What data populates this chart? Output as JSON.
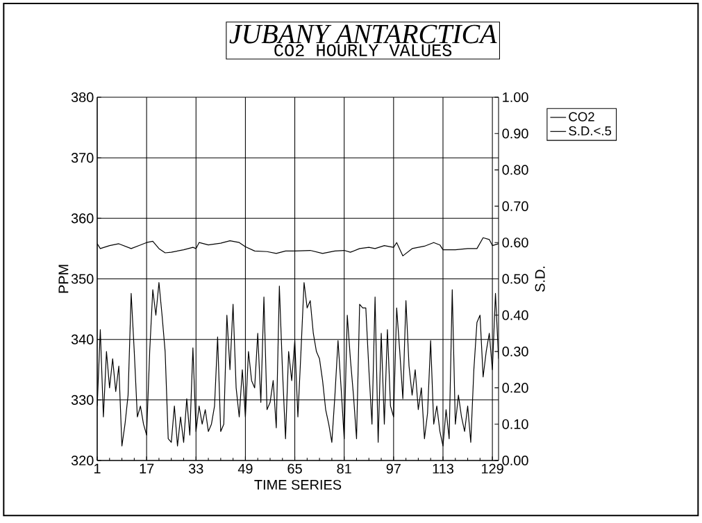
{
  "chart_data": {
    "type": "line",
    "title": "JUBANY ANTARCTICA",
    "subtitle": "CO2 HOURLY VALUES",
    "xlabel": "TIME SERIES",
    "ylabel": "PPM",
    "y2label": "S.D.",
    "xlim": [
      1,
      131
    ],
    "xticks": [
      1,
      17,
      33,
      49,
      65,
      81,
      97,
      113,
      129
    ],
    "ylim": [
      320,
      380
    ],
    "yticks": [
      320,
      330,
      340,
      350,
      360,
      370,
      380
    ],
    "y2lim": [
      0,
      1
    ],
    "y2ticks": [
      {
        "value": 0,
        "label": "0.00"
      },
      {
        "value": 0.1,
        "label": "0.10"
      },
      {
        "value": 0.2,
        "label": "0.20"
      },
      {
        "value": 0.3,
        "label": "0.30"
      },
      {
        "value": 0.4,
        "label": "0.40"
      },
      {
        "value": 0.5,
        "label": "0.50"
      },
      {
        "value": 0.6,
        "label": "0.60"
      },
      {
        "value": 0.7,
        "label": "0.70"
      },
      {
        "value": 0.8,
        "label": "0.80"
      },
      {
        "value": 0.9,
        "label": "0.90"
      },
      {
        "value": 1,
        "label": "1.00"
      }
    ],
    "grid": true,
    "legend": "right",
    "marker": "none",
    "line_style": "solid",
    "series": [
      {
        "name": "CO2",
        "color": "#000000",
        "x": [
          1,
          2,
          5,
          8,
          12,
          15,
          17,
          19,
          21,
          23,
          25,
          29,
          32,
          33,
          34,
          37,
          41,
          44,
          47,
          49,
          52,
          56,
          59,
          62,
          65,
          70,
          74,
          78,
          81,
          83,
          86,
          89,
          91,
          94,
          97,
          98,
          100,
          103,
          107,
          110,
          112,
          113,
          117,
          121,
          124,
          126,
          128,
          129,
          131
        ],
        "values": [
          355.8,
          355,
          355.5,
          355.8,
          355,
          355.6,
          356,
          356.2,
          355,
          354.3,
          354.4,
          354.8,
          355.2,
          355,
          356,
          355.6,
          355.9,
          356.3,
          356,
          355.3,
          354.6,
          354.5,
          354.2,
          354.6,
          354.6,
          354.7,
          354.2,
          354.6,
          354.7,
          354.4,
          355,
          355.2,
          355,
          355.5,
          355.2,
          356,
          353.8,
          355,
          355.4,
          356,
          355.6,
          354.8,
          354.8,
          355,
          355,
          356.8,
          356.5,
          355.5,
          355.8
        ]
      },
      {
        "name": "S.D.<.5",
        "color": "#000000",
        "axis": "y2",
        "x": [
          1,
          2,
          3,
          4,
          5,
          6,
          7,
          8,
          9,
          10,
          11,
          12,
          13,
          14,
          15,
          16,
          17,
          18,
          19,
          20,
          21,
          22,
          23,
          24,
          25,
          26,
          27,
          28,
          29,
          30,
          31,
          32,
          33,
          34,
          35,
          36,
          37,
          38,
          39,
          40,
          41,
          42,
          43,
          44,
          45,
          46,
          47,
          48,
          49,
          50,
          51,
          52,
          53,
          54,
          55,
          56,
          57,
          58,
          59,
          60,
          61,
          62,
          63,
          64,
          65,
          66,
          67,
          68,
          69,
          70,
          71,
          72,
          73,
          74,
          75,
          76,
          77,
          78,
          79,
          80,
          81,
          82,
          83,
          84,
          85,
          86,
          87,
          88,
          89,
          90,
          91,
          92,
          93,
          94,
          95,
          96,
          97,
          98,
          99,
          100,
          101,
          102,
          103,
          104,
          105,
          106,
          107,
          108,
          109,
          110,
          111,
          112,
          113,
          114,
          115,
          116,
          117,
          118,
          119,
          120,
          121,
          122,
          123,
          124,
          125,
          126,
          127,
          128,
          129,
          130,
          131
        ],
        "values": [
          0.15,
          0.36,
          0.12,
          0.3,
          0.2,
          0.28,
          0.19,
          0.26,
          0.04,
          0.1,
          0.18,
          0.46,
          0.3,
          0.12,
          0.15,
          0.1,
          0.07,
          0.3,
          0.47,
          0.4,
          0.49,
          0.4,
          0.3,
          0.06,
          0.05,
          0.15,
          0.04,
          0.12,
          0.05,
          0.17,
          0.07,
          0.31,
          0.08,
          0.15,
          0.1,
          0.14,
          0.08,
          0.1,
          0.15,
          0.34,
          0.08,
          0.1,
          0.4,
          0.25,
          0.43,
          0.2,
          0.12,
          0.25,
          0.12,
          0.3,
          0.22,
          0.2,
          0.35,
          0.16,
          0.45,
          0.14,
          0.16,
          0.22,
          0.09,
          0.48,
          0.25,
          0.06,
          0.3,
          0.22,
          0.33,
          0.12,
          0.3,
          0.49,
          0.42,
          0.44,
          0.35,
          0.3,
          0.28,
          0.22,
          0.14,
          0.1,
          0.05,
          0.18,
          0.33,
          0.2,
          0.06,
          0.4,
          0.28,
          0.18,
          0.06,
          0.43,
          0.42,
          0.42,
          0.25,
          0.1,
          0.45,
          0.05,
          0.35,
          0.1,
          0.36,
          0.15,
          0.12,
          0.42,
          0.3,
          0.17,
          0.44,
          0.26,
          0.18,
          0.25,
          0.14,
          0.2,
          0.06,
          0.13,
          0.33,
          0.1,
          0.15,
          0.08,
          0.04,
          0.14,
          0.06,
          0.47,
          0.1,
          0.18,
          0.12,
          0.08,
          0.15,
          0.05,
          0.25,
          0.38,
          0.4,
          0.23,
          0.3,
          0.35,
          0.25,
          0.46,
          0.28
        ]
      }
    ]
  }
}
